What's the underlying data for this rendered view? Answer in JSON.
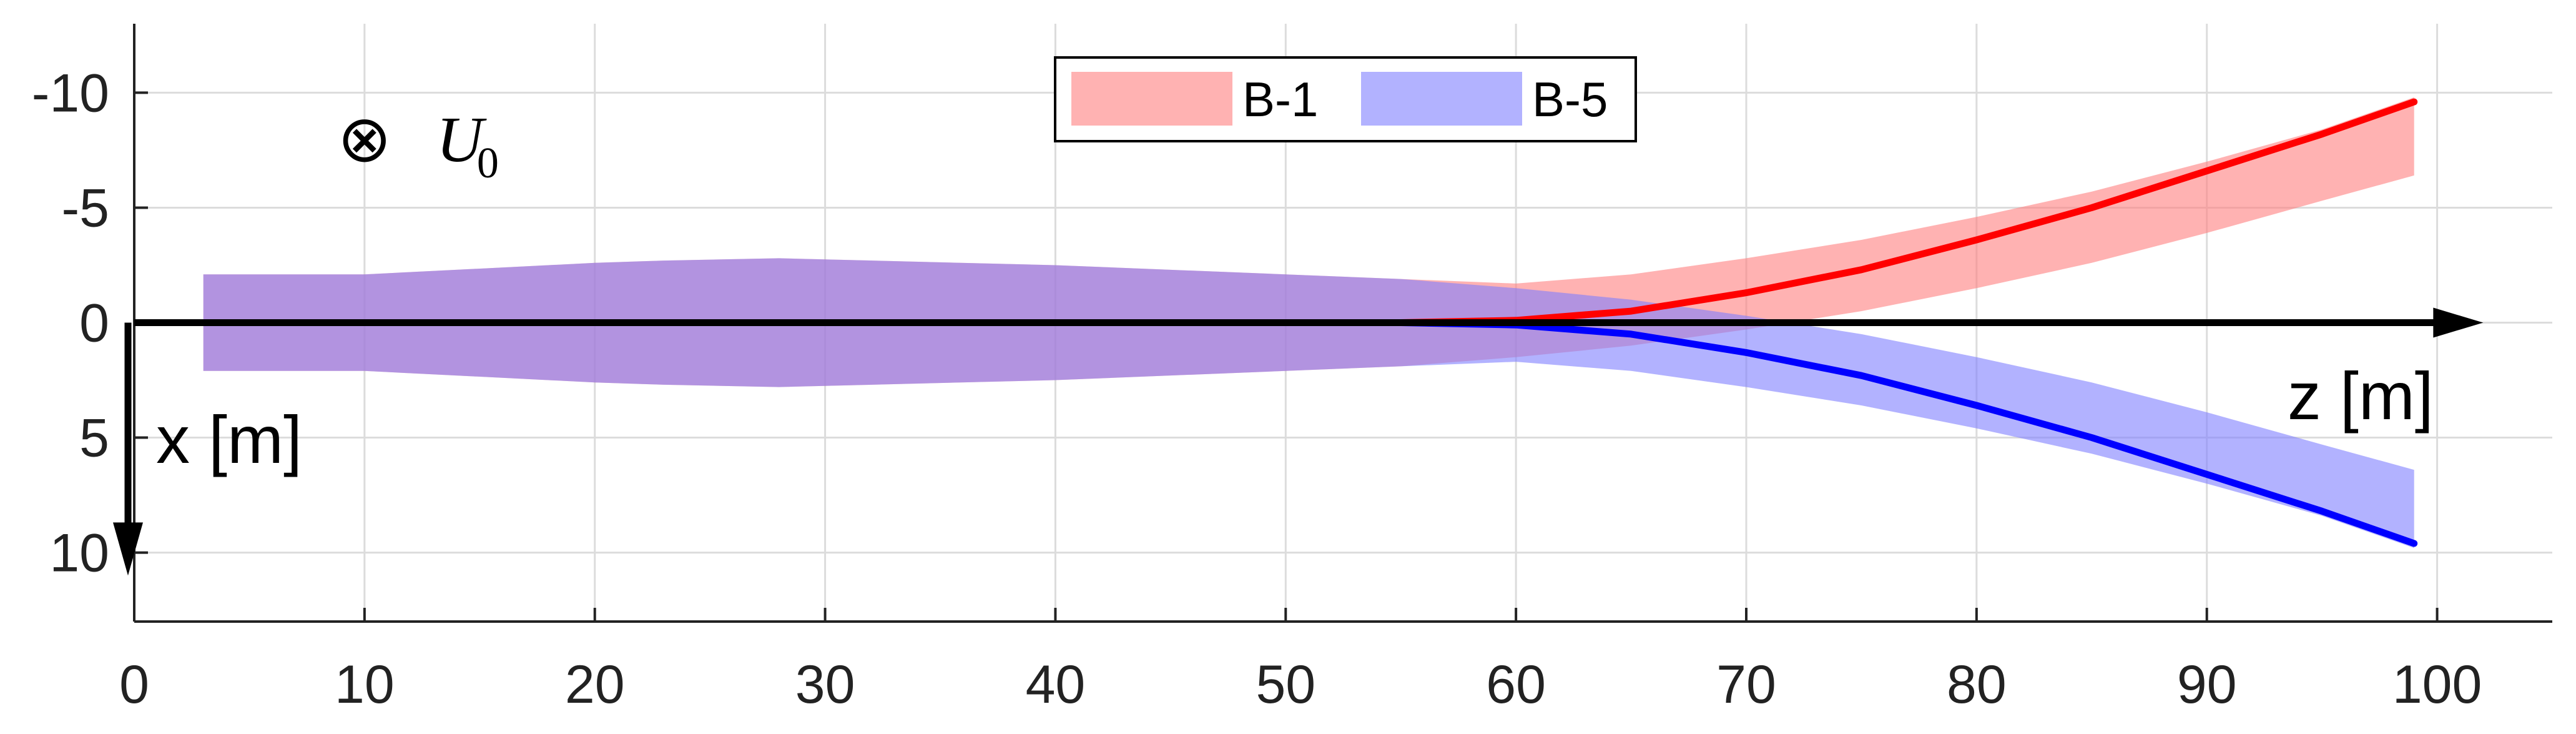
{
  "chart_data": {
    "type": "area",
    "xlim": [
      0,
      105
    ],
    "ylim": [
      -13,
      13
    ],
    "y_axis_reversed": true,
    "grid": true,
    "x_ticks": [
      0,
      10,
      20,
      30,
      40,
      50,
      60,
      70,
      80,
      90,
      100
    ],
    "x_tick_labels": [
      "0",
      "10",
      "20",
      "30",
      "40",
      "50",
      "60",
      "70",
      "80",
      "90",
      "100"
    ],
    "y_ticks": [
      -10,
      -5,
      0,
      5,
      10
    ],
    "y_tick_labels": [
      "-10",
      "-5",
      "0",
      "5",
      "10"
    ],
    "xlabel": "z [m]",
    "ylabel": "x [m]",
    "annotation": {
      "symbol": "⊗",
      "text": "U",
      "subscript": "0",
      "x": 10,
      "y": -8
    },
    "legend": {
      "position": "top-center"
    },
    "series": [
      {
        "name": "B-1",
        "fill_color": "#ff7f7f",
        "fill_opacity": 0.6,
        "line_color": "#ff0000",
        "z": [
          3,
          10,
          20,
          23,
          28,
          40,
          50,
          55,
          60,
          65,
          70,
          75,
          80,
          85,
          90,
          95,
          99
        ],
        "lower": [
          -2.1,
          -2.1,
          -2.6,
          -2.7,
          -2.8,
          -2.5,
          -2.1,
          -1.9,
          -1.7,
          -2.1,
          -2.8,
          -3.6,
          -4.6,
          -5.7,
          -7.0,
          -8.4,
          -9.8
        ],
        "upper": [
          2.1,
          2.1,
          2.6,
          2.7,
          2.8,
          2.5,
          2.1,
          1.9,
          1.5,
          1.0,
          0.3,
          -0.5,
          -1.5,
          -2.6,
          -3.9,
          -5.3,
          -6.4
        ],
        "center_z": [
          55,
          60,
          65,
          70,
          75,
          80,
          85,
          90,
          95,
          99
        ],
        "center": [
          0,
          -0.1,
          -0.5,
          -1.3,
          -2.3,
          -3.6,
          -5.0,
          -6.6,
          -8.2,
          -9.6
        ]
      },
      {
        "name": "B-5",
        "fill_color": "#7f7fff",
        "fill_opacity": 0.6,
        "line_color": "#0000ff",
        "z": [
          3,
          10,
          20,
          23,
          28,
          40,
          50,
          55,
          60,
          65,
          70,
          75,
          80,
          85,
          90,
          95,
          99
        ],
        "lower": [
          -2.1,
          -2.1,
          -2.6,
          -2.7,
          -2.8,
          -2.5,
          -2.1,
          -1.9,
          -1.5,
          -1.0,
          -0.3,
          0.5,
          1.5,
          2.6,
          3.9,
          5.3,
          6.4
        ],
        "upper": [
          2.1,
          2.1,
          2.6,
          2.7,
          2.8,
          2.5,
          2.1,
          1.9,
          1.7,
          2.1,
          2.8,
          3.6,
          4.6,
          5.7,
          7.0,
          8.4,
          9.8
        ],
        "center_z": [
          55,
          60,
          65,
          70,
          75,
          80,
          85,
          90,
          95,
          99
        ],
        "center": [
          0,
          0.1,
          0.5,
          1.3,
          2.3,
          3.6,
          5.0,
          6.6,
          8.2,
          9.6
        ]
      }
    ]
  }
}
